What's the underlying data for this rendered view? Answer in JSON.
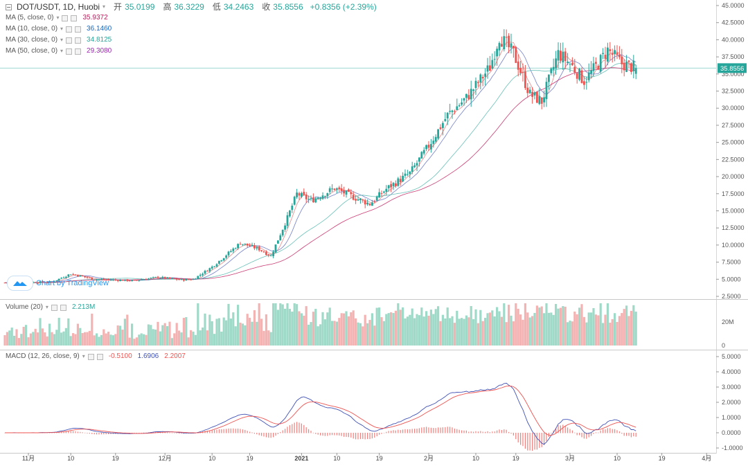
{
  "header": {
    "symbol": "DOT/USDT, 1D, Huobi",
    "open_label": "开",
    "open": "35.0199",
    "high_label": "高",
    "high": "36.3229",
    "low_label": "低",
    "low": "34.2463",
    "close_label": "收",
    "close": "35.8556",
    "change": "+0.8356 (+2.39%)"
  },
  "indicators": [
    {
      "label": "MA (5, close, 0)",
      "value": "35.9372",
      "color": "#c2185b"
    },
    {
      "label": "MA (10, close, 0)",
      "value": "36.1460",
      "color": "#1565c0"
    },
    {
      "label": "MA (30, close, 0)",
      "value": "34.8125",
      "color": "#26a69a"
    },
    {
      "label": "MA (50, close, 0)",
      "value": "29.3080",
      "color": "#9c27b0"
    }
  ],
  "volume_panel": {
    "label": "Volume (20)",
    "value": "2.213M",
    "axis": [
      "20M",
      "0"
    ]
  },
  "macd_panel": {
    "label": "MACD (12, 26, close, 9)",
    "hist": "-0.5100",
    "macd": "1.6906",
    "signal": "2.2007"
  },
  "attribution": "Chart by TradingView",
  "last_price_tag": "35.8556",
  "colors": {
    "up": "#26a69a",
    "up_fill": "#26a69a",
    "down": "#ef5350",
    "vol_up": "#9fd9c8",
    "vol_down": "#f4b3b3",
    "macd": "#3f51b5",
    "signal": "#ef5350"
  },
  "chart_data": {
    "type": "candlestick",
    "title": "DOT/USDT, 1D, Huobi",
    "price_axis_ticks": [
      "45.0000",
      "42.5000",
      "40.0000",
      "37.5000",
      "35.0000",
      "32.5000",
      "30.0000",
      "27.5000",
      "25.0000",
      "22.5000",
      "20.0000",
      "17.5000",
      "15.0000",
      "12.5000",
      "10.0000",
      "7.5000",
      "5.0000",
      "2.5000"
    ],
    "price_ylim": [
      2.5,
      45
    ],
    "macd_axis_ticks": [
      "5.0000",
      "4.0000",
      "3.0000",
      "2.0000",
      "1.0000",
      "0.0000",
      "-1.0000"
    ],
    "macd_ylim": [
      -1,
      5
    ],
    "x_tick_labels": [
      "11月",
      "10",
      "19",
      "12月",
      "10",
      "19",
      "2021",
      "10",
      "19",
      "2月",
      "10",
      "19",
      "3月",
      "10",
      "19",
      "4月"
    ],
    "anchors": [
      [
        0,
        4.5
      ],
      [
        20,
        4.6
      ],
      [
        28,
        5.8
      ],
      [
        38,
        5.0
      ],
      [
        55,
        4.8
      ],
      [
        65,
        5.3
      ],
      [
        75,
        4.9
      ],
      [
        80,
        5.0
      ],
      [
        88,
        6.8
      ],
      [
        100,
        10.3
      ],
      [
        108,
        9.4
      ],
      [
        113,
        8.4
      ],
      [
        120,
        14.0
      ],
      [
        124,
        17.5
      ],
      [
        130,
        16.5
      ],
      [
        140,
        18.3
      ],
      [
        148,
        17.0
      ],
      [
        155,
        16.0
      ],
      [
        162,
        18.2
      ],
      [
        172,
        20.5
      ],
      [
        180,
        24.5
      ],
      [
        188,
        29.0
      ],
      [
        196,
        31.5
      ],
      [
        206,
        36.0
      ],
      [
        210,
        40.5
      ],
      [
        216,
        38.0
      ],
      [
        223,
        32.0
      ],
      [
        228,
        31.0
      ],
      [
        235,
        38.0
      ],
      [
        240,
        36.5
      ],
      [
        246,
        34.0
      ],
      [
        252,
        36.5
      ],
      [
        256,
        38.5
      ],
      [
        262,
        36.5
      ],
      [
        268,
        35.85
      ]
    ]
  }
}
